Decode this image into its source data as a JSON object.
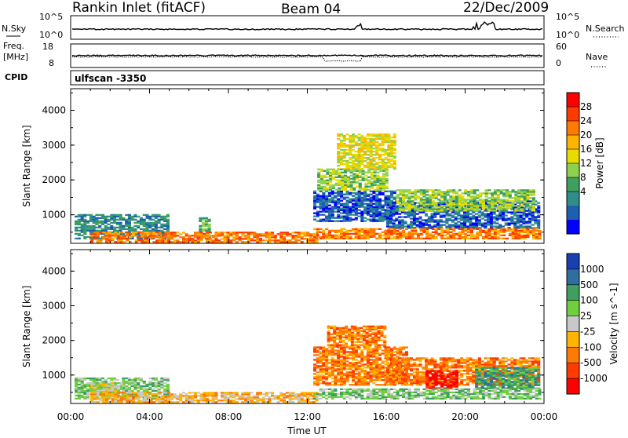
{
  "header": {
    "station": "Rankin Inlet (fitACF)",
    "beam": "Beam 04",
    "date": "22/Dec/2009"
  },
  "status_panels": {
    "nsky_label": "N.Sky",
    "nsky_ticks": [
      "10^5",
      "10^0"
    ],
    "nsearch_label": "N.Search",
    "nsearch_ticks": [
      "10^5",
      "10^0"
    ],
    "freq_label": "Freq.",
    "freq_unit": "[MHz]",
    "freq_ticks": [
      "18",
      "8"
    ],
    "nave_label": "Nave",
    "nave_ticks": [
      "60",
      "0"
    ],
    "cpid_label": "CPID",
    "cpid_value": "ulfscan -3350"
  },
  "chart_data": [
    {
      "type": "heatmap",
      "panel": "power",
      "ylabel": "Slant Range [km]",
      "xlabel": "Time UT",
      "x_ticks": [
        "00:00",
        "04:00",
        "08:00",
        "12:00",
        "16:00",
        "20:00",
        "00:00"
      ],
      "x_range_hours": [
        0,
        24
      ],
      "y_ticks": [
        1000,
        2000,
        3000,
        4000
      ],
      "ylim": [
        180,
        4620
      ],
      "colorbar": {
        "label": "Power [dB]",
        "ticks": [
          "28",
          "24",
          "20",
          "16",
          "12",
          "8",
          "4"
        ],
        "colors": [
          "#ff0000",
          "#ff3b00",
          "#ff7a00",
          "#ffb400",
          "#e6dc00",
          "#8fd14f",
          "#3f9f5f",
          "#2f8f88",
          "#1f5fb0",
          "#0000ff"
        ]
      },
      "regions": [
        {
          "t0": 0.2,
          "t1": 5.0,
          "r0": 300,
          "r1": 1000,
          "level": 7
        },
        {
          "t0": 6.5,
          "t1": 7.0,
          "r0": 300,
          "r1": 900,
          "level": 6
        },
        {
          "t0": 1.0,
          "t1": 12.5,
          "r0": 200,
          "r1": 500,
          "level": 2
        },
        {
          "t0": 12.3,
          "t1": 16.5,
          "r0": 800,
          "r1": 1700,
          "level": 8
        },
        {
          "t0": 12.5,
          "t1": 16.0,
          "r0": 1700,
          "r1": 2300,
          "level": 5
        },
        {
          "t0": 16.0,
          "t1": 23.7,
          "r0": 600,
          "r1": 1400,
          "level": 8
        },
        {
          "t0": 16.5,
          "t1": 23.5,
          "r0": 1100,
          "r1": 1700,
          "level": 5
        },
        {
          "t0": 12.3,
          "t1": 23.8,
          "r0": 300,
          "r1": 600,
          "level": 2
        },
        {
          "t0": 13.5,
          "t1": 16.5,
          "r0": 2300,
          "r1": 3300,
          "level": 4
        }
      ]
    },
    {
      "type": "heatmap",
      "panel": "velocity",
      "ylabel": "Slant Range [km]",
      "xlabel": "Time UT",
      "x_ticks": [
        "00:00",
        "04:00",
        "08:00",
        "12:00",
        "16:00",
        "20:00",
        "00:00"
      ],
      "x_range_hours": [
        0,
        24
      ],
      "y_ticks": [
        1000,
        2000,
        3000,
        4000
      ],
      "ylim": [
        180,
        4620
      ],
      "colorbar": {
        "label": "Velocity [m s^-1]",
        "ticks": [
          "1000",
          "500",
          "100",
          "25",
          "-25",
          "-100",
          "-500",
          "-1000"
        ],
        "colors": [
          "#1a3fb0",
          "#2f6f9f",
          "#3f9f5f",
          "#6fcf3f",
          "#c8c8c8",
          "#ffb400",
          "#ff7a00",
          "#ff3b00",
          "#ff0000"
        ]
      },
      "regions": [
        {
          "t0": 0.2,
          "t1": 5.0,
          "r0": 300,
          "r1": 900,
          "level": 3
        },
        {
          "t0": 1.0,
          "t1": 2.5,
          "r0": 400,
          "r1": 800,
          "level": 4
        },
        {
          "t0": 1.0,
          "t1": 12.5,
          "r0": 200,
          "r1": 500,
          "level": 5
        },
        {
          "t0": 12.3,
          "t1": 17.0,
          "r0": 700,
          "r1": 1800,
          "level": 6
        },
        {
          "t0": 13.0,
          "t1": 16.0,
          "r0": 1800,
          "r1": 2400,
          "level": 6
        },
        {
          "t0": 16.0,
          "t1": 23.7,
          "r0": 700,
          "r1": 1500,
          "level": 6
        },
        {
          "t0": 20.5,
          "t1": 23.7,
          "r0": 600,
          "r1": 1200,
          "level": 2
        },
        {
          "t0": 18.0,
          "t1": 19.5,
          "r0": 600,
          "r1": 1100,
          "level": 8
        },
        {
          "t0": 12.3,
          "t1": 23.8,
          "r0": 300,
          "r1": 600,
          "level": 3
        }
      ]
    }
  ]
}
